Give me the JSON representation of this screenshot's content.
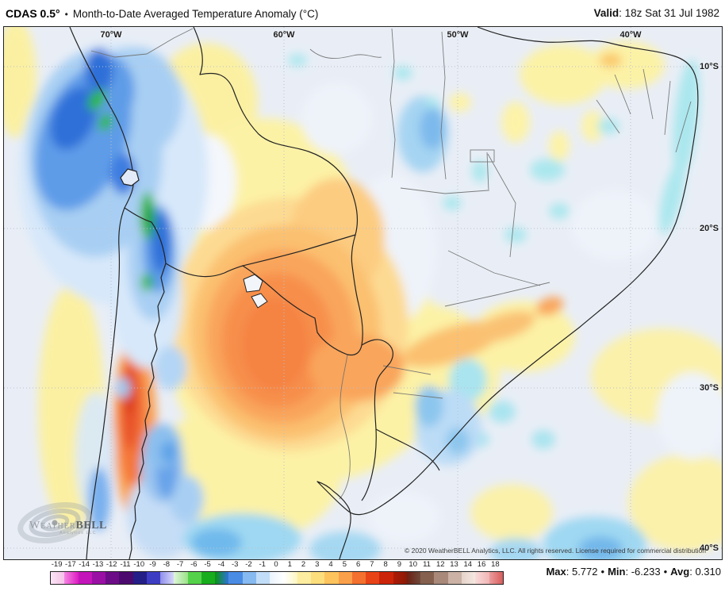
{
  "header": {
    "model": "CDAS 0.5°",
    "separator": "•",
    "title": "Month-to-Date Averaged Temperature Anomaly (°C)",
    "valid_label": "Valid",
    "colon": ": ",
    "valid_value": "18z Sat 31 Jul 1982"
  },
  "map": {
    "lon_labels": [
      {
        "text": "70°W"
      },
      {
        "text": "60°W"
      },
      {
        "text": "50°W"
      },
      {
        "text": "40°W"
      }
    ],
    "lat_labels": [
      {
        "text": "10°S"
      },
      {
        "text": "20°S"
      },
      {
        "text": "30°S"
      },
      {
        "text": "40°S"
      }
    ],
    "copyright": "© 2020 WeatherBELL Analytics, LLC. All rights reserved. License required for commercial distribution",
    "logo": {
      "word_weather": "Weather",
      "word_bell": "BELL",
      "subtitle": "Analytics LLC"
    }
  },
  "colorbar": {
    "labels": [
      "-19",
      "-17",
      "-14",
      "-13",
      "-12",
      "-11",
      "-10",
      "-9",
      "-8",
      "-7",
      "-6",
      "-5",
      "-4",
      "-3",
      "-2",
      "-1",
      "0",
      "1",
      "2",
      "3",
      "4",
      "5",
      "6",
      "7",
      "8",
      "9",
      "10",
      "11",
      "12",
      "13",
      "14",
      "16",
      "18"
    ],
    "colors": [
      "linear-gradient(90deg,#fbe4f6,#f6c2e8)",
      "linear-gradient(90deg,#f586e2,#dd1bc2)",
      "#c315ba",
      "#9a10a5",
      "#6c0d87",
      "#4c0a6e",
      "#241e87",
      "#3d3dc4",
      "linear-gradient(90deg,#8f8fec,#d6d6fa)",
      "linear-gradient(90deg,#dff5da,#9be288)",
      "#55d24a",
      "#18ad1c",
      "linear-gradient(90deg,#0c9212,#2e74da)",
      "#4a8ce4",
      "#86baf0",
      "#c2ddf8",
      "linear-gradient(90deg,#eaf3fc,#ffffff)",
      "linear-gradient(90deg,#ffffff,#fdf6c0)",
      "#fdeda0",
      "#fdde7d",
      "#fdc45e",
      "#fba04a",
      "#f4702e",
      "#e84317",
      "#cc2409",
      "linear-gradient(90deg,#ae1a06,#8a1a06)",
      "linear-gradient(90deg,#6e2012,#6e4a3c)",
      "#86604f",
      "#a8897a",
      "#cbb2a5",
      "linear-gradient(90deg,#e5d3ca,#f4e7e1)",
      "linear-gradient(90deg,#f7dcda,#f1b5b5)",
      "linear-gradient(90deg,#eb9d9d,#d95c5c)"
    ]
  },
  "stats": {
    "max_label": "Max",
    "max_value": "5.772",
    "min_label": "Min",
    "min_value": "-6.233",
    "avg_label": "Avg",
    "avg_value": "0.310",
    "colon": ": ",
    "bullet": "•"
  }
}
